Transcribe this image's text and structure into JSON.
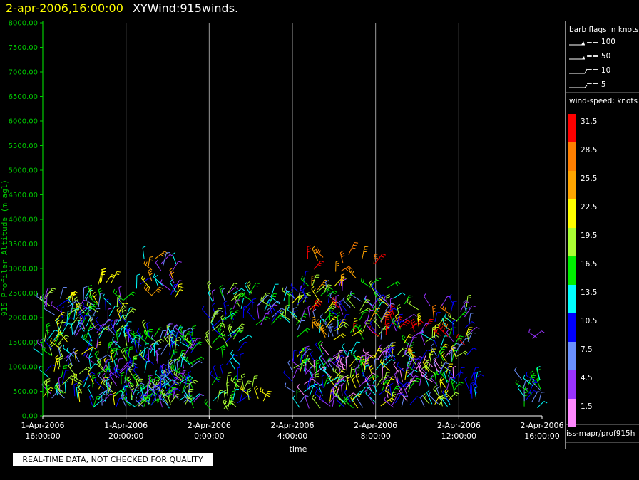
{
  "header": {
    "datetime": "2-apr-2006,16:00:00",
    "title": "XYWind:915winds."
  },
  "notice": "REAL-TIME DATA, NOT CHECKED FOR QUALITY",
  "legend": {
    "barb_title": "barb flags in knots",
    "barbs": [
      {
        "label": "== 100"
      },
      {
        "label": "== 50"
      },
      {
        "label": "== 10"
      },
      {
        "label": "== 5"
      }
    ],
    "colorbar_title": "wind-speed: knots",
    "colorbar": [
      {
        "label": "31.5",
        "color": "#ff0000"
      },
      {
        "label": "28.5",
        "color": "#ff7f00"
      },
      {
        "label": "25.5",
        "color": "#ffa500"
      },
      {
        "label": "22.5",
        "color": "#ffff00"
      },
      {
        "label": "19.5",
        "color": "#aaff33"
      },
      {
        "label": "16.5",
        "color": "#00ee00"
      },
      {
        "label": "13.5",
        "color": "#00ffff"
      },
      {
        "label": "10.5",
        "color": "#0000ff"
      },
      {
        "label": "7.5",
        "color": "#6a8fff"
      },
      {
        "label": "4.5",
        "color": "#9933ff"
      },
      {
        "label": "1.5",
        "color": "#ff88ff"
      }
    ]
  },
  "footer_id": "iss-mapr/prof915h",
  "chart_data": {
    "type": "scatter",
    "title": "XYWind:915winds.",
    "xlabel": "time",
    "ylabel": "915 Profiler Altitude (m agl)",
    "ylim": [
      0,
      8000
    ],
    "yticks": [
      "0.00",
      "500.00",
      "1000.00",
      "1500.00",
      "2000.00",
      "2500.00",
      "3000.00",
      "3500.00",
      "4000.00",
      "4500.00",
      "5000.00",
      "5500.00",
      "6000.00",
      "6500.00",
      "7000.00",
      "7500.00",
      "8000.00"
    ],
    "xticks": [
      {
        "date": "1-Apr-2006",
        "time": "16:00:00"
      },
      {
        "date": "1-Apr-2006",
        "time": "20:00:00"
      },
      {
        "date": "2-Apr-2006",
        "time": "0:00:00"
      },
      {
        "date": "2-Apr-2006",
        "time": "4:00:00"
      },
      {
        "date": "2-Apr-2006",
        "time": "8:00:00"
      },
      {
        "date": "2-Apr-2006",
        "time": "12:00:00"
      },
      {
        "date": "2-Apr-2006",
        "time": "16:00:00"
      }
    ],
    "xlim_hours": [
      0,
      24
    ],
    "grid": "vertical lines at major x ticks",
    "clusters": [
      {
        "t_start": 0.0,
        "t_end": 4.0,
        "alt_min": 150,
        "alt_max": 2450,
        "density": 220,
        "speeds": [
          4,
          7,
          10,
          13,
          16,
          19,
          22
        ]
      },
      {
        "t_start": 4.0,
        "t_end": 7.3,
        "alt_min": 150,
        "alt_max": 1700,
        "density": 200,
        "speeds": [
          4,
          7,
          10,
          13,
          16,
          19
        ]
      },
      {
        "t_start": 2.5,
        "t_end": 3.3,
        "alt_min": 2600,
        "alt_max": 2750,
        "density": 5,
        "speeds": [
          22
        ]
      },
      {
        "t_start": 4.5,
        "t_end": 6.5,
        "alt_min": 2400,
        "alt_max": 3250,
        "density": 25,
        "speeds": [
          4,
          7,
          10,
          13,
          22,
          25
        ]
      },
      {
        "t_start": 8.0,
        "t_end": 9.5,
        "alt_min": 100,
        "alt_max": 2000,
        "density": 55,
        "speeds": [
          10,
          13,
          16,
          19
        ]
      },
      {
        "t_start": 8.0,
        "t_end": 12.5,
        "alt_min": 1800,
        "alt_max": 2500,
        "density": 60,
        "speeds": [
          4,
          7,
          10,
          13,
          16,
          19
        ]
      },
      {
        "t_start": 9.5,
        "t_end": 11.0,
        "alt_min": 300,
        "alt_max": 600,
        "density": 8,
        "speeds": [
          19,
          22
        ]
      },
      {
        "t_start": 12.0,
        "t_end": 17.0,
        "alt_min": 1500,
        "alt_max": 2700,
        "density": 110,
        "speeds": [
          4,
          7,
          10,
          13,
          16,
          19,
          22,
          25,
          31
        ]
      },
      {
        "t_start": 12.5,
        "t_end": 16.0,
        "alt_min": 2800,
        "alt_max": 3300,
        "density": 12,
        "speeds": [
          25,
          28,
          31
        ]
      },
      {
        "t_start": 12.0,
        "t_end": 20.0,
        "alt_min": 150,
        "alt_max": 1300,
        "density": 260,
        "speeds": [
          1,
          4,
          7,
          10,
          13,
          16,
          19,
          22
        ]
      },
      {
        "t_start": 17.0,
        "t_end": 20.5,
        "alt_min": 1200,
        "alt_max": 2300,
        "density": 60,
        "speeds": [
          4,
          7,
          10,
          13,
          16,
          19,
          22,
          28,
          31
        ]
      },
      {
        "t_start": 20.5,
        "t_end": 21.0,
        "alt_min": 200,
        "alt_max": 800,
        "density": 10,
        "speeds": [
          10,
          13
        ]
      },
      {
        "t_start": 23.0,
        "t_end": 24.0,
        "alt_min": 150,
        "alt_max": 800,
        "density": 20,
        "speeds": [
          7,
          10,
          13,
          16
        ]
      },
      {
        "t_start": 23.5,
        "t_end": 23.8,
        "alt_min": 1300,
        "alt_max": 1600,
        "density": 2,
        "speeds": [
          4
        ]
      }
    ]
  }
}
